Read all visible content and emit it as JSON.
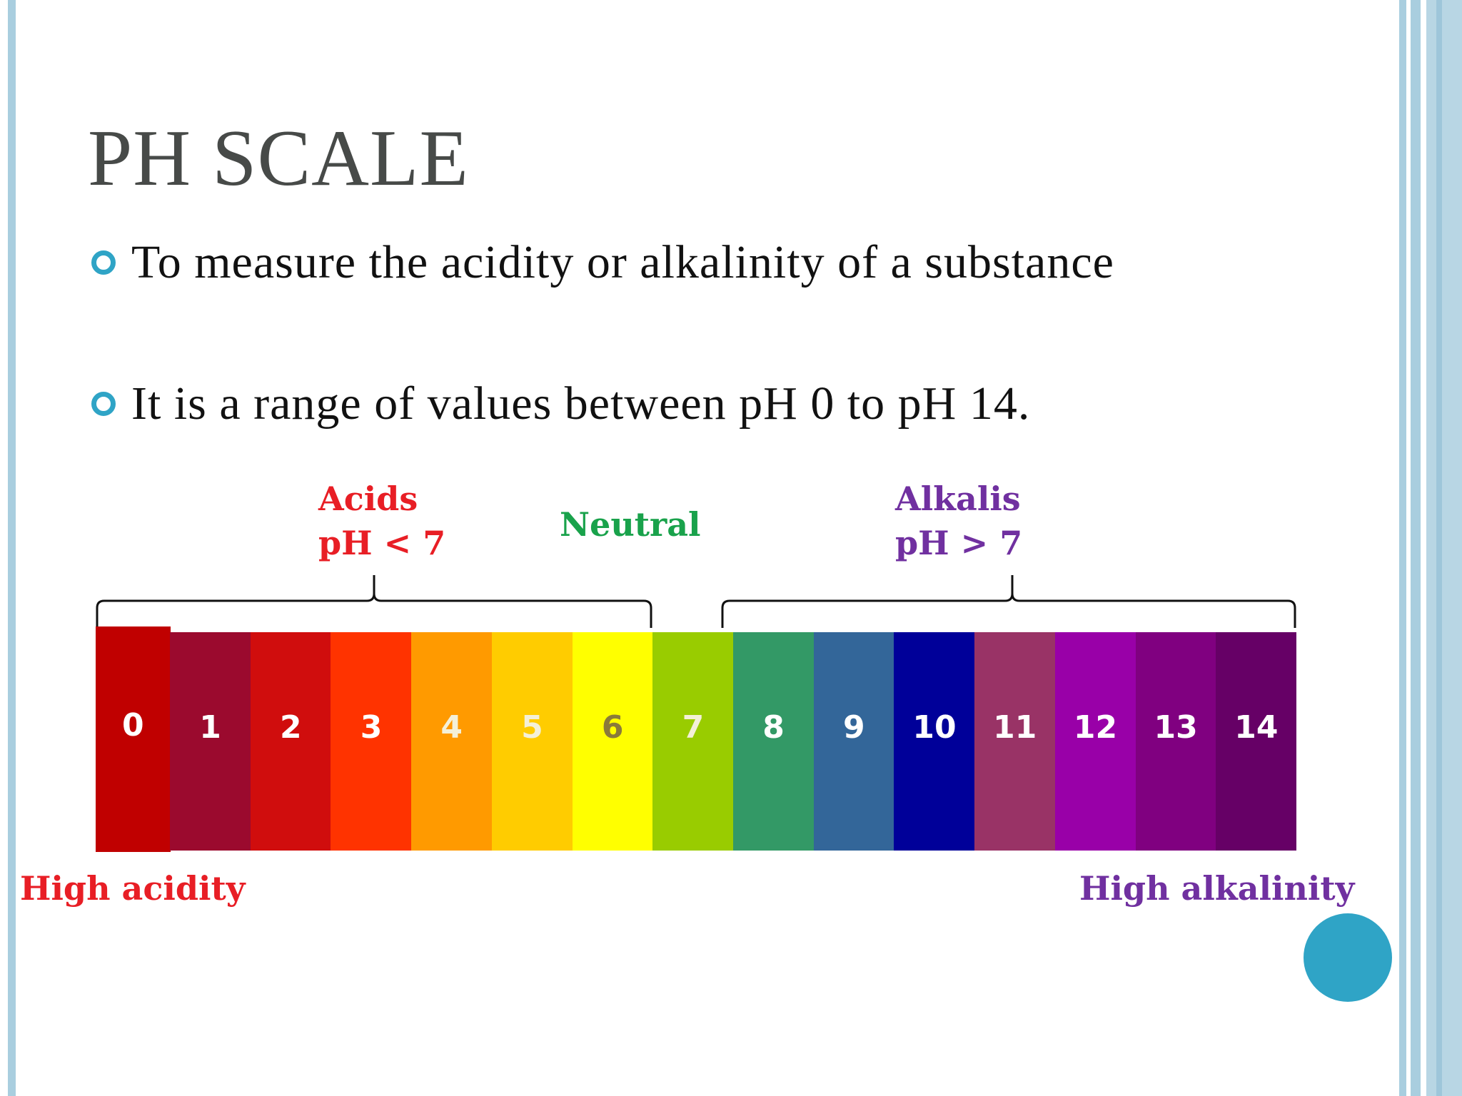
{
  "slide": {
    "title": "PH SCALE",
    "bullets": [
      "To measure the acidity or alkalinity of a substance",
      "It is a range of values between pH 0 to pH 14."
    ]
  },
  "diagram": {
    "acids_label": "Acids",
    "acids_range": "pH < 7",
    "neutral_label": "Neutral",
    "alkalis_label": "Alkalis",
    "alkalis_range": "pH > 7",
    "high_acidity": "High acidity",
    "high_alkalinity": "High alkalinity",
    "scale": [
      {
        "value": "0",
        "color": "#c00000"
      },
      {
        "value": "1",
        "color": "#9b0a2e"
      },
      {
        "value": "2",
        "color": "#d00d0d"
      },
      {
        "value": "3",
        "color": "#ff3300"
      },
      {
        "value": "4",
        "color": "#ff9a00"
      },
      {
        "value": "5",
        "color": "#ffcc00"
      },
      {
        "value": "6",
        "color": "#ffff00"
      },
      {
        "value": "7",
        "color": "#99cc00"
      },
      {
        "value": "8",
        "color": "#339966"
      },
      {
        "value": "9",
        "color": "#336699"
      },
      {
        "value": "10",
        "color": "#000099"
      },
      {
        "value": "11",
        "color": "#993366"
      },
      {
        "value": "12",
        "color": "#9900a8"
      },
      {
        "value": "13",
        "color": "#800080"
      },
      {
        "value": "14",
        "color": "#660066"
      }
    ],
    "colors": {
      "acid": "#e81e25",
      "neutral": "#19a24b",
      "alkali": "#7030a0",
      "accent": "#2fa4c6"
    }
  }
}
